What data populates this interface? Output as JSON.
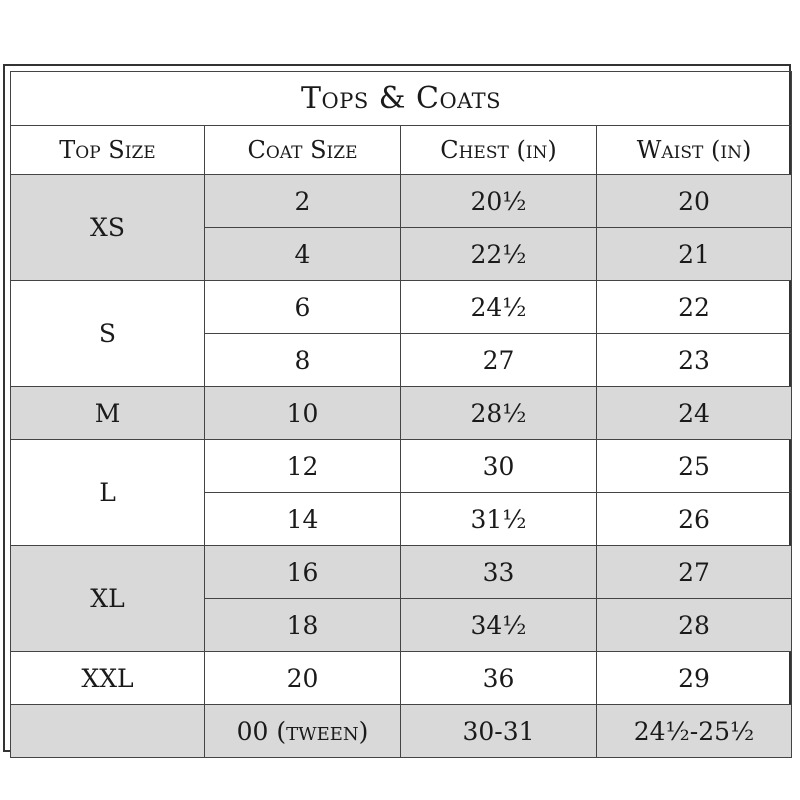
{
  "title": "Tops & Coats",
  "headers": [
    "Top Size",
    "Coat Size",
    "Chest (in)",
    "Waist (in)"
  ],
  "groups": [
    {
      "top": "XS",
      "shaded": true,
      "rows": [
        {
          "coat": "2",
          "chest": "20½",
          "waist": "20"
        },
        {
          "coat": "4",
          "chest": "22½",
          "waist": "21"
        }
      ]
    },
    {
      "top": "S",
      "shaded": false,
      "rows": [
        {
          "coat": "6",
          "chest": "24½",
          "waist": "22"
        },
        {
          "coat": "8",
          "chest": "27",
          "waist": "23"
        }
      ]
    },
    {
      "top": "M",
      "shaded": true,
      "rows": [
        {
          "coat": "10",
          "chest": "28½",
          "waist": "24"
        }
      ]
    },
    {
      "top": "L",
      "shaded": false,
      "rows": [
        {
          "coat": "12",
          "chest": "30",
          "waist": "25"
        },
        {
          "coat": "14",
          "chest": "31½",
          "waist": "26"
        }
      ]
    },
    {
      "top": "XL",
      "shaded": true,
      "rows": [
        {
          "coat": "16",
          "chest": "33",
          "waist": "27"
        },
        {
          "coat": "18",
          "chest": "34½",
          "waist": "28"
        }
      ]
    },
    {
      "top": "XXL",
      "shaded": false,
      "rows": [
        {
          "coat": "20",
          "chest": "36",
          "waist": "29"
        }
      ]
    },
    {
      "top": "",
      "shaded": true,
      "rows": [
        {
          "coat": "00 (tween)",
          "chest": "30-31",
          "waist": "24½-25½"
        }
      ]
    }
  ],
  "colors": {
    "shade": "#d9d9d9",
    "border": "#444444"
  }
}
